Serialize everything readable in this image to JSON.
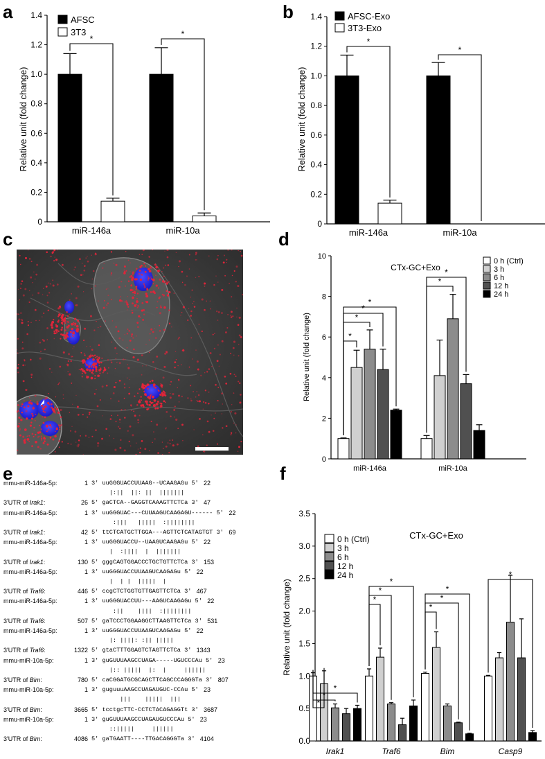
{
  "panels": {
    "a": "a",
    "b": "b",
    "c": "c",
    "d": "d",
    "e": "e",
    "f": "f"
  },
  "colors": {
    "black": "#000000",
    "white": "#ffffff",
    "g1": "#d0d0d0",
    "g2": "#8c8c8c",
    "g3": "#505050",
    "nuclei": "#2a2ae0",
    "puncta": "#e0253a"
  },
  "chart_data": [
    {
      "id": "a",
      "type": "bar",
      "ylabel": "Relative unit (fold change)",
      "ylim": [
        0,
        1.4
      ],
      "yticks": [
        "0",
        "0.2",
        "0.4",
        "0.6",
        "0.8",
        "1.0",
        "1.2",
        "1.4"
      ],
      "categories": [
        "miR-146a",
        "miR-10a"
      ],
      "series": [
        {
          "name": "AFSC",
          "color": "#000000",
          "values": [
            1.0,
            1.0
          ],
          "errors": [
            0.14,
            0.18
          ]
        },
        {
          "name": "3T3",
          "color": "#ffffff",
          "values": [
            0.14,
            0.04
          ],
          "errors": [
            0.02,
            0.02
          ]
        }
      ],
      "significance": [
        "*",
        "*"
      ],
      "legend": "top-left"
    },
    {
      "id": "b",
      "type": "bar",
      "ylabel": "Relative unit (fold change)",
      "ylim": [
        0,
        1.4
      ],
      "yticks": [
        "0",
        "0.2",
        "0.4",
        "0.6",
        "0.8",
        "1.0",
        "1.2",
        "1.4"
      ],
      "categories": [
        "miR-146a",
        "miR-10a"
      ],
      "series": [
        {
          "name": "AFSC-Exo",
          "color": "#000000",
          "values": [
            1.0,
            1.0
          ],
          "errors": [
            0.14,
            0.09
          ]
        },
        {
          "name": "3T3-Exo",
          "color": "#ffffff",
          "values": [
            0.14,
            0.0
          ],
          "errors": [
            0.02,
            0
          ]
        }
      ],
      "significance": [
        "*",
        "*"
      ],
      "legend": "top-left"
    },
    {
      "id": "d",
      "type": "bar",
      "title": "CTx-GC+Exo",
      "ylabel": "Relative unit (fold change)",
      "ylim": [
        0,
        10
      ],
      "yticks": [
        "0",
        "2",
        "4",
        "6",
        "8",
        "10"
      ],
      "categories": [
        "miR-146a",
        "miR-10a"
      ],
      "series": [
        {
          "name": "0 h (Ctrl)",
          "color": "#ffffff",
          "values": [
            1.0,
            1.0
          ],
          "errors": [
            0.03,
            0.15
          ]
        },
        {
          "name": "3 h",
          "color": "#d0d0d0",
          "values": [
            4.5,
            4.1
          ],
          "errors": [
            0.85,
            1.75
          ]
        },
        {
          "name": "6 h",
          "color": "#8c8c8c",
          "values": [
            5.4,
            6.9
          ],
          "errors": [
            0.95,
            1.2
          ]
        },
        {
          "name": "12 h",
          "color": "#505050",
          "values": [
            4.4,
            3.7
          ],
          "errors": [
            1.0,
            0.45
          ]
        },
        {
          "name": "24 h",
          "color": "#000000",
          "values": [
            2.4,
            1.4
          ],
          "errors": [
            0.05,
            0.28
          ]
        }
      ],
      "significance": [
        "*",
        "*",
        "*",
        "*",
        "*",
        "*"
      ],
      "legend": "top-right"
    },
    {
      "id": "f",
      "type": "bar",
      "title": "CTx-GC+Exo",
      "ylabel": "Relative unit (fold change)",
      "ylim": [
        0,
        3.5
      ],
      "yticks": [
        "0.0",
        "0.5",
        "1.0",
        "1.5",
        "2.0",
        "2.5",
        "3.0",
        "3.5"
      ],
      "categories": [
        "Irak1",
        "Traf6",
        "Bim",
        "Casp9"
      ],
      "series": [
        {
          "name": "0 h (Ctrl)",
          "color": "#ffffff",
          "values": [
            1.0,
            1.0,
            1.04,
            1.0
          ],
          "errors": [
            0.05,
            0.11,
            0.02,
            0.01
          ]
        },
        {
          "name": "3 h",
          "color": "#d0d0d0",
          "values": [
            0.88,
            1.29,
            1.44,
            1.28
          ],
          "errors": [
            0.2,
            0.14,
            0.24,
            0.08
          ]
        },
        {
          "name": "6 h",
          "color": "#8c8c8c",
          "values": [
            0.51,
            0.57,
            0.54,
            1.83
          ],
          "errors": [
            0.06,
            0.02,
            0.03,
            0.72
          ]
        },
        {
          "name": "12 h",
          "color": "#505050",
          "values": [
            0.42,
            0.25,
            0.28,
            1.28
          ],
          "errors": [
            0.08,
            0.1,
            0.01,
            0.6
          ]
        },
        {
          "name": "24 h",
          "color": "#000000",
          "values": [
            0.5,
            0.54,
            0.11,
            0.13
          ],
          "errors": [
            0.05,
            0.09,
            0.01,
            0.03
          ]
        }
      ],
      "significance": [
        "*",
        "*",
        "*",
        "*",
        "*",
        "*",
        "*",
        "*",
        "*",
        "*",
        "*"
      ],
      "legend": "top-left"
    }
  ],
  "sequences": [
    {
      "label": "mmu-miR-146a-5p:",
      "n1": "1",
      "seq": "3' uuGGGUACCUUAAG--UCAAGAGu 5'",
      "n2": "22"
    },
    {
      "label": "",
      "n1": "",
      "seq": "     |:||  ||: ||  |||||||",
      "n2": ""
    },
    {
      "label": "3'UTR of ",
      "gene": "Irak1",
      "suffix": ":",
      "n1": "26",
      "seq": "5' gaCTCA--GAGGTCAAAGTTCTCa 3'",
      "n2": "47"
    },
    {
      "label": "mmu-miR-146a-5p:",
      "n1": "1",
      "seq": "3' uuGGGUAC---CUUAAGUCAAGAGU------ 5'",
      "n2": "22"
    },
    {
      "label": "",
      "n1": "",
      "seq": "      :|||   |||||  :||||||||",
      "n2": ""
    },
    {
      "label": "3'UTR of ",
      "gene": "Irak1",
      "suffix": ":",
      "n1": "42",
      "seq": "5' ttCTCATGCTTGGA---AGTTCTCATAGTGT 3'",
      "n2": "69"
    },
    {
      "label": "mmu-miR-146a-5p:",
      "n1": "1",
      "seq": "3' uuGGGUACCU--UAAGUCAAGAGu 5'",
      "n2": "22"
    },
    {
      "label": "",
      "n1": "",
      "seq": "     |  :||||  |  |||||||",
      "n2": ""
    },
    {
      "label": "3'UTR of ",
      "gene": "Irak1",
      "suffix": ":",
      "n1": "130",
      "seq": "5' gggCAGTGGACCCTGCTGTTCTCa 3'",
      "n2": "153"
    },
    {
      "label": "mmu-miR-146a-5p:",
      "n1": "1",
      "seq": "3' uuGGGUACCUUAAGUCAAGAGu 5'",
      "n2": "22"
    },
    {
      "label": "",
      "n1": "",
      "seq": "     |  | |  |||||  |",
      "n2": ""
    },
    {
      "label": "3'UTR of ",
      "gene": "Traf6",
      "suffix": ":",
      "n1": "446",
      "seq": "5' ccgCTCTGGTGTTGAGTTCTCa 3'",
      "n2": "467"
    },
    {
      "label": "mmu-miR-146a-5p:",
      "n1": "1",
      "seq": "3' uuGGGUACCUU---AAGUCAAGAGu 5'",
      "n2": "22"
    },
    {
      "label": "",
      "n1": "",
      "seq": "      :||    ||||  :||||||||",
      "n2": ""
    },
    {
      "label": "3'UTR of ",
      "gene": "Traf6",
      "suffix": ":",
      "n1": "507",
      "seq": "5' gaTCCCTGGAAGGCTTAAGTTCTCa 3'",
      "n2": "531"
    },
    {
      "label": "mmu-miR-146a-5p:",
      "n1": "1",
      "seq": "3' uuGGGUACCUUAAGUCAAGAGu 5'",
      "n2": "22"
    },
    {
      "label": "",
      "n1": "",
      "seq": "     |: ||||: :|| |||||",
      "n2": ""
    },
    {
      "label": "3'UTR of ",
      "gene": "Traf6",
      "suffix": ":",
      "n1": "1322",
      "seq": "5' gtaCTTTGGAGTCTAGTTCTCa 3'",
      "n2": "1343"
    },
    {
      "label": "mmu-miR-10a-5p:",
      "n1": "1",
      "seq": "3' guGUUUAAGCCUAGA-----UGUCCCAu 5'",
      "n2": "23"
    },
    {
      "label": "",
      "n1": "",
      "seq": "     |:: |||||  |:  |     ||||||",
      "n2": ""
    },
    {
      "label": "3'UTR of ",
      "gene": "Bim",
      "suffix": ":",
      "n1": "780",
      "seq": "5' caCGGATGCGCAGCTTCAGCCCAGGGTa 3'",
      "n2": "807"
    },
    {
      "label": "mmu-miR-10a-5p:",
      "n1": "1",
      "seq": "3' guguuuAAGCCUAGAUGUC-CCAu 5'",
      "n2": "23"
    },
    {
      "label": "",
      "n1": "",
      "seq": "        |||    |||||  |||",
      "n2": ""
    },
    {
      "label": "3'UTR of ",
      "gene": "Bim",
      "suffix": ":",
      "n1": "3665",
      "seq": "5' tcctgcTTC-CCTCTACAGAGGTt 3'",
      "n2": "3687"
    },
    {
      "label": "mmu-miR-10a-5p:",
      "n1": "1",
      "seq": "3' guGUUUAAGCCUAGAUGUCCCAu 5'",
      "n2": "23"
    },
    {
      "label": "",
      "n1": "",
      "seq": "     ::|||||     ||||||",
      "n2": ""
    },
    {
      "label": "3'UTR of ",
      "gene": "Bim",
      "suffix": ":",
      "n1": "4086",
      "seq": "5' gaTGAATT----TTGACAGGGTa 3'",
      "n2": "4104"
    }
  ]
}
